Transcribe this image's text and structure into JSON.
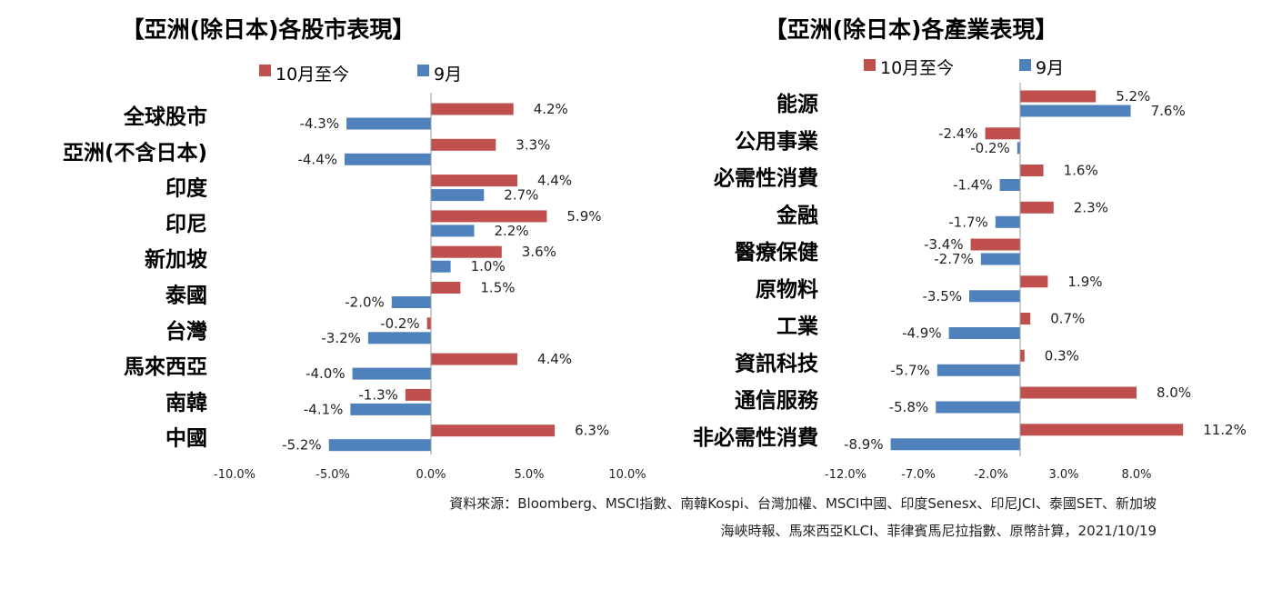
{
  "colors": {
    "series_oct": "#c0504d",
    "series_sep": "#4f81bd",
    "axis": "#999999"
  },
  "source": {
    "line1": "資料來源：Bloomberg、MSCI指數、南韓Kospi、台灣加權、MSCI中國、印度Senesx、印尼JCI、泰國SET、新加坡",
    "line2": "海峽時報、馬來西亞KLCI、菲律賓馬尼拉指數、原幣計算，2021/10/19"
  },
  "chart_data": [
    {
      "type": "bar",
      "orientation": "horizontal",
      "title": "【亞洲(除日本)各股市表現】",
      "legend_placement": "top",
      "categories": [
        "全球股市",
        "亞洲(不含日本)",
        "印度",
        "印尼",
        "新加坡",
        "泰國",
        "台灣",
        "馬來西亞",
        "南韓",
        "中國"
      ],
      "series": [
        {
          "name": "10月至今",
          "values": [
            4.2,
            3.3,
            4.4,
            5.9,
            3.6,
            1.5,
            -0.2,
            4.4,
            -1.3,
            6.3
          ],
          "labels": [
            "4.2%",
            "3.3%",
            "4.4%",
            "5.9%",
            "3.6%",
            "1.5%",
            "-0.2%",
            "4.4%",
            "-1.3%",
            "6.3%"
          ]
        },
        {
          "name": "9月",
          "values": [
            -4.3,
            -4.4,
            2.7,
            2.2,
            1.0,
            -2.0,
            -3.2,
            -4.0,
            -4.1,
            -5.2
          ],
          "labels": [
            "-4.3%",
            "-4.4%",
            "2.7%",
            "2.2%",
            "1.0%",
            "-2.0%",
            "-3.2%",
            "-4.0%",
            "-4.1%",
            "-5.2%"
          ]
        }
      ],
      "xlim": [
        -10,
        10
      ],
      "xticks": [
        -10,
        -5,
        0,
        5,
        10
      ],
      "xtick_labels": [
        "-10.0%",
        "-5.0%",
        "0.0%",
        "5.0%",
        "10.0%"
      ],
      "grid": false
    },
    {
      "type": "bar",
      "orientation": "horizontal",
      "title": "【亞洲(除日本)各產業表現】",
      "legend_placement": "top",
      "categories": [
        "能源",
        "公用事業",
        "必需性消費",
        "金融",
        "醫療保健",
        "原物料",
        "工業",
        "資訊科技",
        "通信服務",
        "非必需性消費"
      ],
      "series": [
        {
          "name": "10月至今",
          "values": [
            5.2,
            -2.4,
            1.6,
            2.3,
            -3.4,
            1.9,
            0.7,
            0.3,
            8.0,
            11.2
          ],
          "labels": [
            "5.2%",
            "-2.4%",
            "1.6%",
            "2.3%",
            "-3.4%",
            "1.9%",
            "0.7%",
            "0.3%",
            "8.0%",
            "11.2%"
          ]
        },
        {
          "name": "9月",
          "values": [
            7.6,
            -0.2,
            -1.4,
            -1.7,
            -2.7,
            -3.5,
            -4.9,
            -5.7,
            -5.8,
            -8.9
          ],
          "labels": [
            "7.6%",
            "-0.2%",
            "-1.4%",
            "-1.7%",
            "-2.7%",
            "-3.5%",
            "-4.9%",
            "-5.7%",
            "-5.8%",
            "-8.9%"
          ]
        }
      ],
      "xlim": [
        -12,
        13
      ],
      "xticks": [
        -12,
        -7,
        -2,
        3,
        8
      ],
      "xtick_labels": [
        "-12.0%",
        "-7.0%",
        "-2.0%",
        "3.0%",
        "8.0%"
      ],
      "grid": false
    }
  ]
}
